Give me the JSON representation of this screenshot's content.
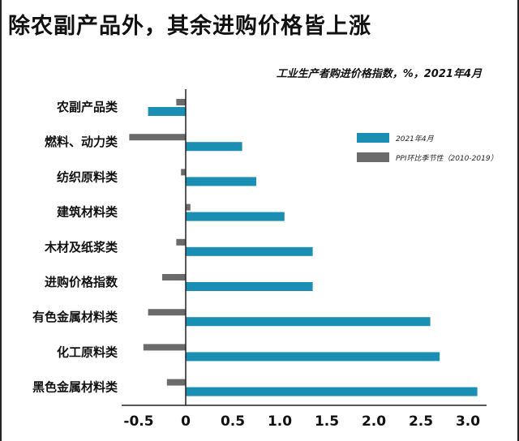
{
  "header": {
    "title": "除农副产品外，其余进购价格皆上涨",
    "subtitle": "工业生产者购进价格指数，%，2021年4月"
  },
  "colors": {
    "current": "#1a8fb3",
    "seasonal": "#6b6b6b"
  },
  "chart_data": {
    "type": "bar",
    "orientation": "horizontal",
    "title": "除农副产品外，其余进购价格皆上涨",
    "subtitle": "工业生产者购进价格指数，%，2021年4月",
    "categories": [
      "农副产品类",
      "燃料、动力类",
      "纺织原料类",
      "建筑材料类",
      "木材及纸浆类",
      "进购价格指数",
      "有色金属材料类",
      "化工原料类",
      "黑色金属材料类"
    ],
    "series": [
      {
        "name": "2021年4月",
        "values": [
          -0.4,
          0.6,
          0.75,
          1.05,
          1.35,
          1.35,
          2.6,
          2.7,
          3.1
        ]
      },
      {
        "name": "PPI环比季节性（2010-2019）",
        "values": [
          -0.1,
          -0.6,
          -0.05,
          0.05,
          -0.1,
          -0.25,
          -0.4,
          -0.45,
          -0.2
        ]
      }
    ],
    "xlim": [
      -0.7,
      3.2
    ],
    "xticks": [
      "-0.5",
      "0",
      "0.5",
      "1.0",
      "1.5",
      "2.0",
      "2.5",
      "3.0"
    ],
    "xtick_values": [
      -0.5,
      0,
      0.5,
      1.0,
      1.5,
      2.0,
      2.5,
      3.0
    ],
    "legend": "right",
    "grid": false
  }
}
